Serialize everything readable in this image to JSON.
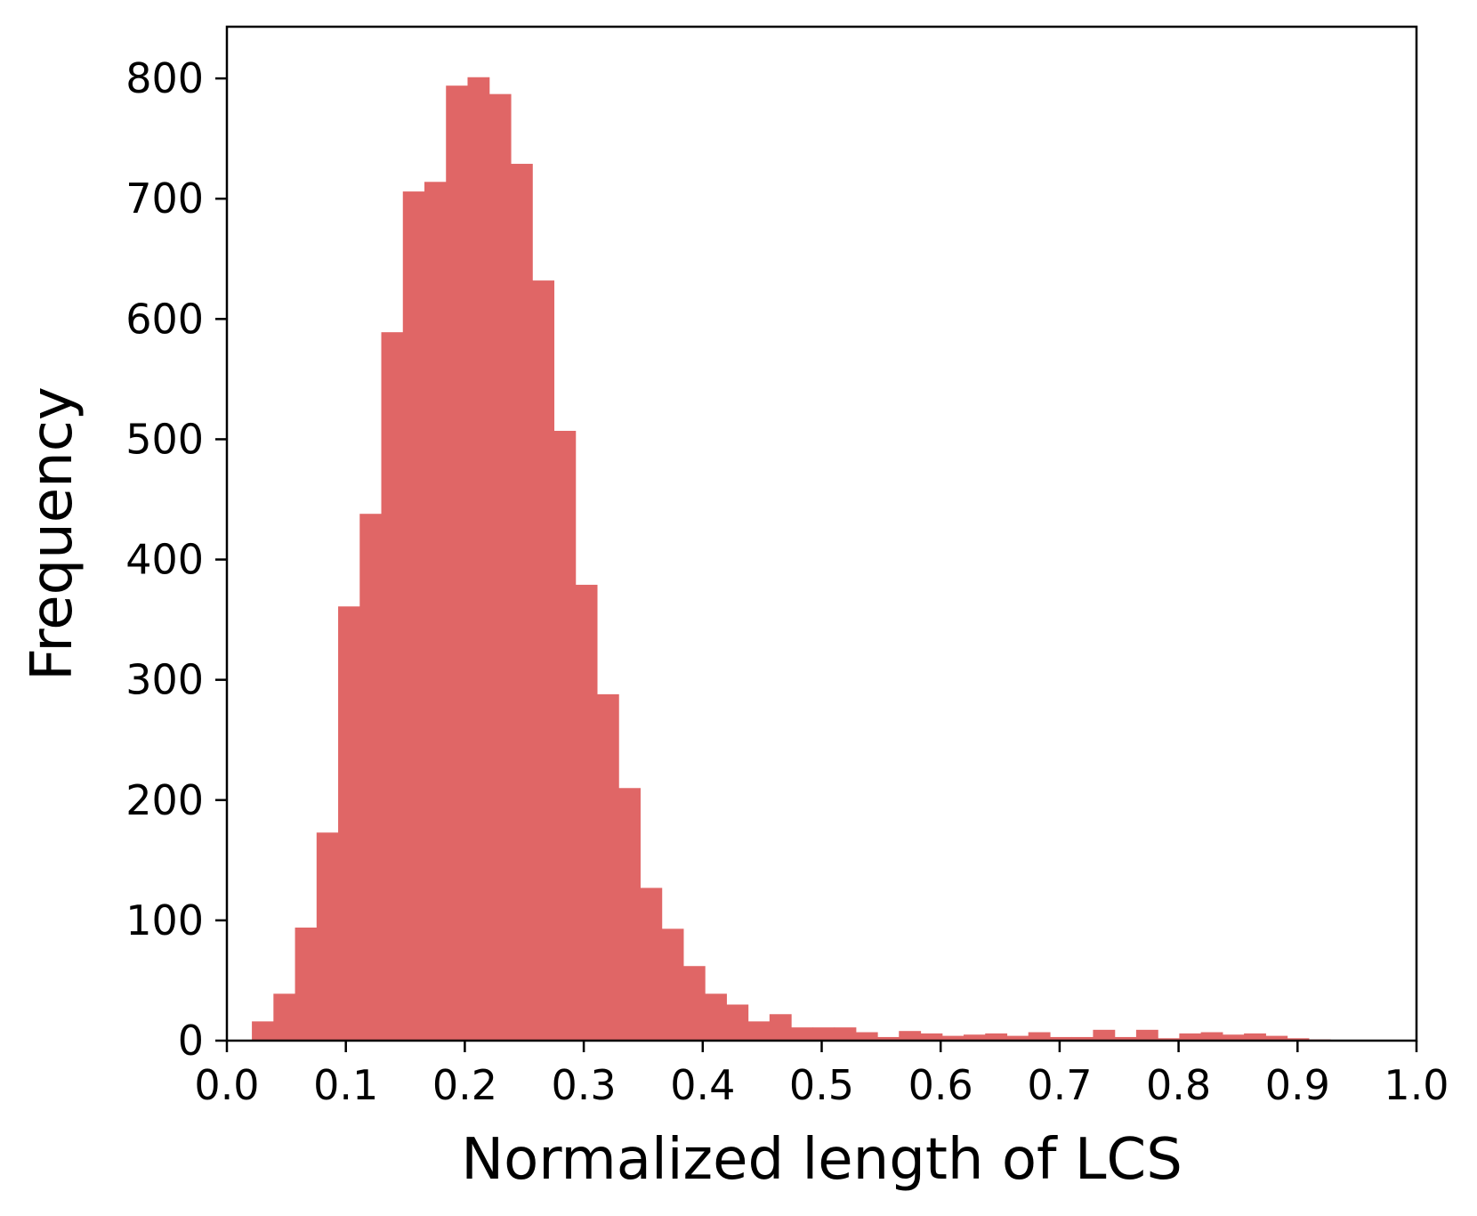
{
  "chart_data": {
    "type": "bar",
    "title": "",
    "xlabel": "Normalized length of LCS",
    "ylabel": "Frequency",
    "xlim": [
      0.0,
      1.0
    ],
    "ylim": [
      0,
      843
    ],
    "xticks": [
      "0.0",
      "0.1",
      "0.2",
      "0.3",
      "0.4",
      "0.5",
      "0.6",
      "0.7",
      "0.8",
      "0.9",
      "1.0"
    ],
    "yticks": [
      "0",
      "100",
      "200",
      "300",
      "400",
      "500",
      "600",
      "700",
      "800"
    ],
    "grid": false,
    "legend": "none",
    "bar_color": "#e06666",
    "bin_start": 0.021,
    "bin_width": 0.01813,
    "values": [
      16,
      39,
      94,
      173,
      361,
      438,
      589,
      706,
      714,
      794,
      801,
      787,
      729,
      632,
      507,
      379,
      288,
      210,
      127,
      93,
      62,
      39,
      30,
      16,
      22,
      11,
      11,
      11,
      7,
      3,
      8,
      6,
      4,
      5,
      6,
      4,
      7,
      3,
      3,
      9,
      3,
      9,
      2,
      6,
      7,
      5,
      6,
      4,
      2,
      1
    ]
  }
}
